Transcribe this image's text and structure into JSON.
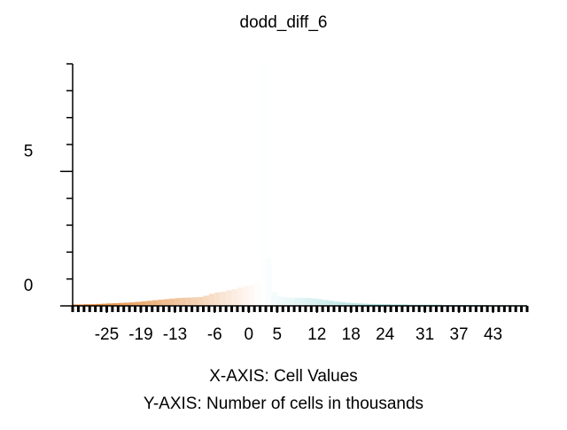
{
  "chart_data": {
    "type": "histogram",
    "title": "dodd_diff_6",
    "x_label": "X-AXIS: Cell Values",
    "y_label": "Y-AXIS: Number of cells in thousands",
    "bins": [
      -31,
      -30,
      -29,
      -28,
      -27,
      -26,
      -25,
      -24,
      -23,
      -22,
      -21,
      -20,
      -19,
      -18,
      -17,
      -16,
      -15,
      -14,
      -13,
      -12,
      -11,
      -10,
      -9,
      -8,
      -7,
      -6,
      -5,
      -4,
      -3,
      -2,
      -1,
      0,
      1,
      2,
      3,
      4,
      5,
      6,
      7,
      8,
      9,
      10,
      11,
      12,
      13,
      14,
      15,
      16,
      17,
      18,
      19,
      20,
      21,
      22,
      23,
      24,
      25,
      26,
      27,
      28,
      29,
      30,
      31,
      32,
      33,
      34,
      35,
      36,
      37,
      38,
      39,
      40,
      41,
      42,
      43,
      44,
      45,
      46,
      47,
      48,
      49
    ],
    "values": [
      0.05,
      0.05,
      0.06,
      0.06,
      0.07,
      0.08,
      0.09,
      0.1,
      0.11,
      0.12,
      0.13,
      0.15,
      0.17,
      0.19,
      0.21,
      0.23,
      0.25,
      0.27,
      0.29,
      0.3,
      0.31,
      0.32,
      0.33,
      0.38,
      0.45,
      0.5,
      0.52,
      0.58,
      0.62,
      0.68,
      0.75,
      0.8,
      0.9,
      9,
      1.8,
      0.5,
      0.35,
      0.32,
      0.3,
      0.3,
      0.3,
      0.3,
      0.28,
      0.25,
      0.22,
      0.19,
      0.16,
      0.14,
      0.12,
      0.1,
      0.09,
      0.08,
      0.07,
      0.07,
      0.06,
      0.06,
      0.05,
      0.05,
      0.05,
      0.04,
      0.04,
      0.04,
      0.04,
      0.04,
      0.04,
      0.03,
      0.03,
      0.03,
      0.03,
      0.03,
      0.03,
      0.03,
      0.03,
      0.02,
      0.02,
      0.02,
      0.02,
      0.02,
      0.02,
      0.02
    ],
    "colors": [
      "#e07b20",
      "#ffffff",
      "#3fb8b8"
    ],
    "color_stops": [
      -31,
      2,
      49
    ],
    "xlim": [
      -31,
      49
    ],
    "ylim": [
      0,
      9
    ],
    "xticks": [
      -25,
      -19,
      -13,
      -6,
      0,
      5,
      12,
      18,
      24,
      31,
      37,
      43
    ],
    "yticks": [
      0,
      5
    ],
    "yminor_ticks": [
      1,
      2,
      3,
      4,
      6,
      7,
      8,
      9
    ]
  }
}
